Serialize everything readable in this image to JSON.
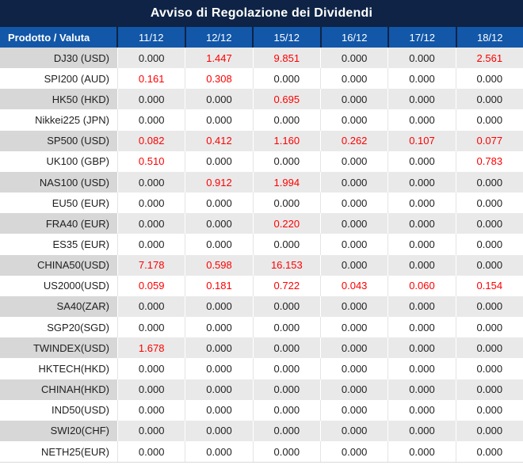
{
  "title": "Avviso di Regolazione dei Dividendi",
  "table": {
    "product_header": "Prodotto / Valuta",
    "date_headers": [
      "11/12",
      "12/12",
      "15/12",
      "16/12",
      "17/12",
      "18/12"
    ],
    "rows": [
      {
        "product": "DJ30 (USD)",
        "values": [
          "0.000",
          "1.447",
          "9.851",
          "0.000",
          "0.000",
          "2.561"
        ]
      },
      {
        "product": "SPI200 (AUD)",
        "values": [
          "0.161",
          "0.308",
          "0.000",
          "0.000",
          "0.000",
          "0.000"
        ]
      },
      {
        "product": "HK50 (HKD)",
        "values": [
          "0.000",
          "0.000",
          "0.695",
          "0.000",
          "0.000",
          "0.000"
        ]
      },
      {
        "product": "Nikkei225 (JPN)",
        "values": [
          "0.000",
          "0.000",
          "0.000",
          "0.000",
          "0.000",
          "0.000"
        ]
      },
      {
        "product": "SP500 (USD)",
        "values": [
          "0.082",
          "0.412",
          "1.160",
          "0.262",
          "0.107",
          "0.077"
        ]
      },
      {
        "product": "UK100 (GBP)",
        "values": [
          "0.510",
          "0.000",
          "0.000",
          "0.000",
          "0.000",
          "0.783"
        ]
      },
      {
        "product": "NAS100 (USD)",
        "values": [
          "0.000",
          "0.912",
          "1.994",
          "0.000",
          "0.000",
          "0.000"
        ]
      },
      {
        "product": "EU50 (EUR)",
        "values": [
          "0.000",
          "0.000",
          "0.000",
          "0.000",
          "0.000",
          "0.000"
        ]
      },
      {
        "product": "FRA40 (EUR)",
        "values": [
          "0.000",
          "0.000",
          "0.220",
          "0.000",
          "0.000",
          "0.000"
        ]
      },
      {
        "product": "ES35 (EUR)",
        "values": [
          "0.000",
          "0.000",
          "0.000",
          "0.000",
          "0.000",
          "0.000"
        ]
      },
      {
        "product": "CHINA50(USD)",
        "values": [
          "7.178",
          "0.598",
          "16.153",
          "0.000",
          "0.000",
          "0.000"
        ]
      },
      {
        "product": "US2000(USD)",
        "values": [
          "0.059",
          "0.181",
          "0.722",
          "0.043",
          "0.060",
          "0.154"
        ]
      },
      {
        "product": "SA40(ZAR)",
        "values": [
          "0.000",
          "0.000",
          "0.000",
          "0.000",
          "0.000",
          "0.000"
        ]
      },
      {
        "product": "SGP20(SGD)",
        "values": [
          "0.000",
          "0.000",
          "0.000",
          "0.000",
          "0.000",
          "0.000"
        ]
      },
      {
        "product": "TWINDEX(USD)",
        "values": [
          "1.678",
          "0.000",
          "0.000",
          "0.000",
          "0.000",
          "0.000"
        ]
      },
      {
        "product": "HKTECH(HKD)",
        "values": [
          "0.000",
          "0.000",
          "0.000",
          "0.000",
          "0.000",
          "0.000"
        ]
      },
      {
        "product": "CHINAH(HKD)",
        "values": [
          "0.000",
          "0.000",
          "0.000",
          "0.000",
          "0.000",
          "0.000"
        ]
      },
      {
        "product": "IND50(USD)",
        "values": [
          "0.000",
          "0.000",
          "0.000",
          "0.000",
          "0.000",
          "0.000"
        ]
      },
      {
        "product": "SWI20(CHF)",
        "values": [
          "0.000",
          "0.000",
          "0.000",
          "0.000",
          "0.000",
          "0.000"
        ]
      },
      {
        "product": "NETH25(EUR)",
        "values": [
          "0.000",
          "0.000",
          "0.000",
          "0.000",
          "0.000",
          "0.000"
        ]
      }
    ]
  },
  "colors": {
    "title_bg": "#0e2345",
    "header_bg": "#1257a8",
    "header_text": "#ffffff",
    "value_text": "#1f1f1f",
    "nonzero_value_text": "#fe0000",
    "stripe_product_bg": "#d7d7d7",
    "stripe_value_bg": "#e9e9e9"
  },
  "chart_data": {
    "type": "table",
    "title": "Avviso di Regolazione dei Dividendi",
    "columns": [
      "Prodotto / Valuta",
      "11/12",
      "12/12",
      "15/12",
      "16/12",
      "17/12",
      "18/12"
    ],
    "rows": [
      [
        "DJ30 (USD)",
        0.0,
        1.447,
        9.851,
        0.0,
        0.0,
        2.561
      ],
      [
        "SPI200 (AUD)",
        0.161,
        0.308,
        0.0,
        0.0,
        0.0,
        0.0
      ],
      [
        "HK50 (HKD)",
        0.0,
        0.0,
        0.695,
        0.0,
        0.0,
        0.0
      ],
      [
        "Nikkei225 (JPN)",
        0.0,
        0.0,
        0.0,
        0.0,
        0.0,
        0.0
      ],
      [
        "SP500 (USD)",
        0.082,
        0.412,
        1.16,
        0.262,
        0.107,
        0.077
      ],
      [
        "UK100 (GBP)",
        0.51,
        0.0,
        0.0,
        0.0,
        0.0,
        0.783
      ],
      [
        "NAS100 (USD)",
        0.0,
        0.912,
        1.994,
        0.0,
        0.0,
        0.0
      ],
      [
        "EU50 (EUR)",
        0.0,
        0.0,
        0.0,
        0.0,
        0.0,
        0.0
      ],
      [
        "FRA40 (EUR)",
        0.0,
        0.0,
        0.22,
        0.0,
        0.0,
        0.0
      ],
      [
        "ES35 (EUR)",
        0.0,
        0.0,
        0.0,
        0.0,
        0.0,
        0.0
      ],
      [
        "CHINA50(USD)",
        7.178,
        0.598,
        16.153,
        0.0,
        0.0,
        0.0
      ],
      [
        "US2000(USD)",
        0.059,
        0.181,
        0.722,
        0.043,
        0.06,
        0.154
      ],
      [
        "SA40(ZAR)",
        0.0,
        0.0,
        0.0,
        0.0,
        0.0,
        0.0
      ],
      [
        "SGP20(SGD)",
        0.0,
        0.0,
        0.0,
        0.0,
        0.0,
        0.0
      ],
      [
        "TWINDEX(USD)",
        1.678,
        0.0,
        0.0,
        0.0,
        0.0,
        0.0
      ],
      [
        "HKTECH(HKD)",
        0.0,
        0.0,
        0.0,
        0.0,
        0.0,
        0.0
      ],
      [
        "CHINAH(HKD)",
        0.0,
        0.0,
        0.0,
        0.0,
        0.0,
        0.0
      ],
      [
        "IND50(USD)",
        0.0,
        0.0,
        0.0,
        0.0,
        0.0,
        0.0
      ],
      [
        "SWI20(CHF)",
        0.0,
        0.0,
        0.0,
        0.0,
        0.0,
        0.0
      ],
      [
        "NETH25(EUR)",
        0.0,
        0.0,
        0.0,
        0.0,
        0.0,
        0.0
      ]
    ],
    "value_format": "3 decimal places",
    "highlight_rule": "non-zero values shown in red"
  }
}
